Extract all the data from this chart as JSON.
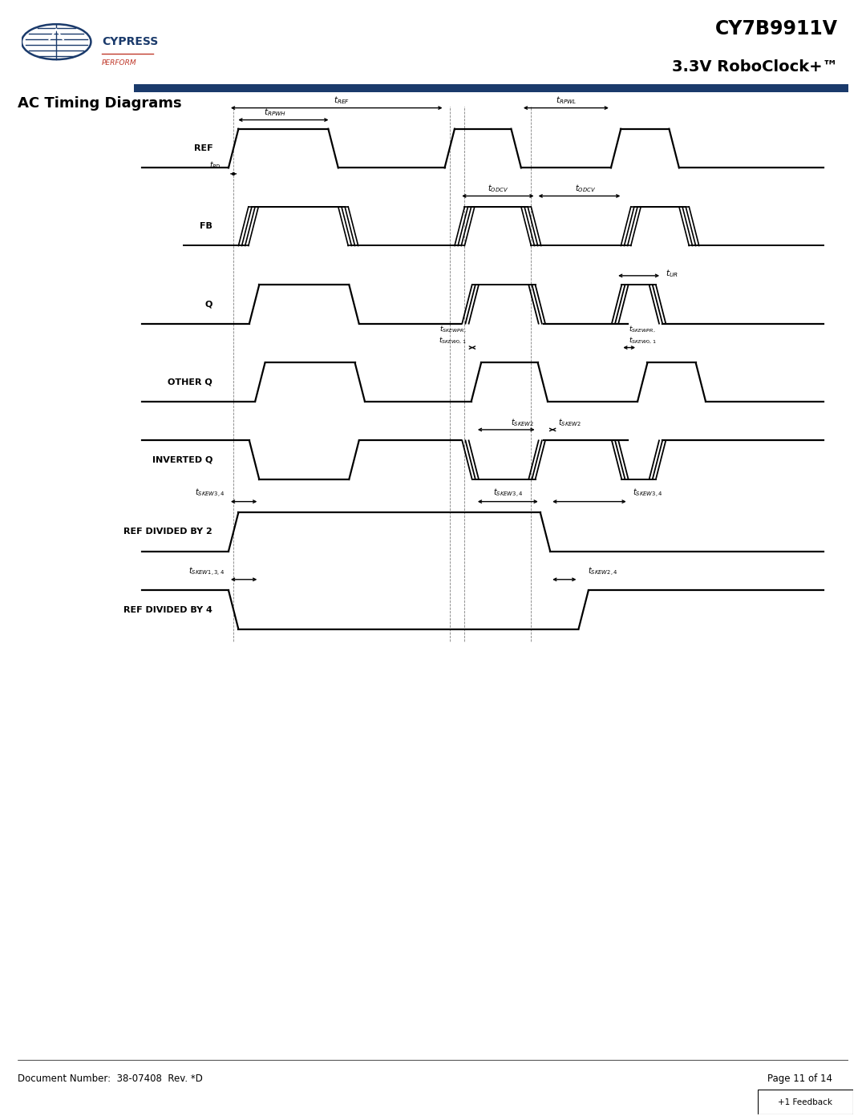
{
  "title1": "CY7B9911V",
  "title2": "3.3V RoboClock+™",
  "section_title": "AC Timing Diagrams",
  "signals": [
    "REF",
    "FB",
    "Q",
    "OTHER Q",
    "INVERTED Q",
    "REF DIVIDED BY 2",
    "REF DIVIDED BY 4"
  ],
  "doc_number": "Document Number:  38-07408  Rev. *D",
  "page": "Page 11 of 14",
  "feedback_text": "+1 Feedback",
  "header_line_color": "#1a3a6b",
  "cypress_blue": "#1a3a6b",
  "cypress_red": "#c0392b"
}
